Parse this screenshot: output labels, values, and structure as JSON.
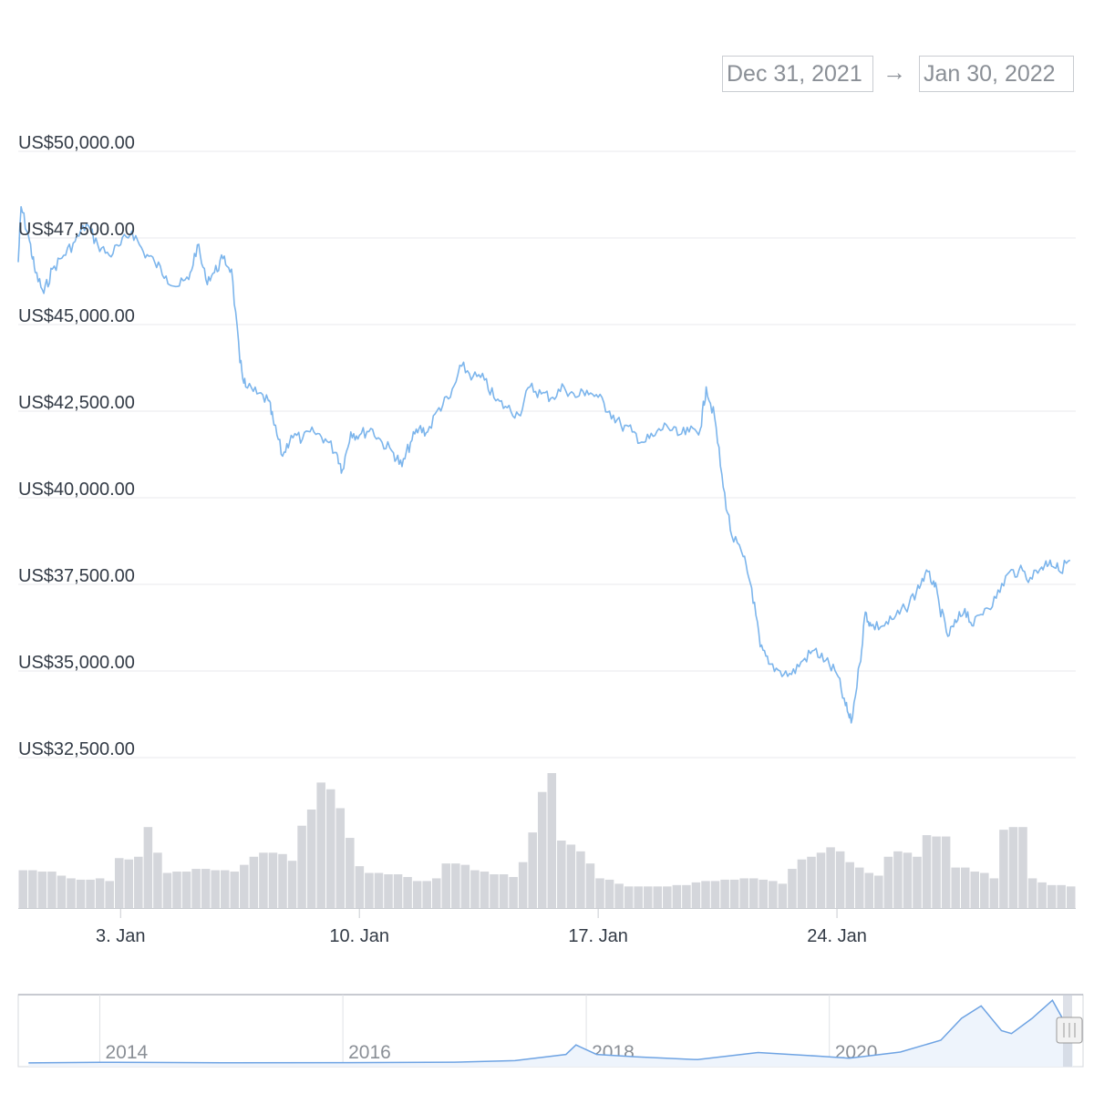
{
  "range_selector": {
    "from": "Dec 31, 2021",
    "arrow": "→",
    "to": "Jan 30, 2022"
  },
  "colors": {
    "price_line": "#7cb5ec",
    "volume_bar": "#d4d6db",
    "grid": "#e8e9ec",
    "navigator_line": "#6ea3e3",
    "navigator_mask": "#c8cdd8"
  },
  "chart_data": {
    "type": "line",
    "title": "",
    "y_axis": {
      "min": 32500,
      "max": 50000,
      "ticks": [
        50000,
        47500,
        45000,
        42500,
        40000,
        37500,
        35000,
        32500
      ],
      "tick_labels": [
        "US$50,000.00",
        "US$47,500.00",
        "US$45,000.00",
        "US$42,500.00",
        "US$40,000.00",
        "US$37,500.00",
        "US$35,000.00",
        "US$32,500.00"
      ]
    },
    "x_axis": {
      "start": "2021-12-31",
      "end": "2022-01-30",
      "ticks": [
        "2022-01-03",
        "2022-01-10",
        "2022-01-17",
        "2022-01-24"
      ],
      "tick_labels": [
        "3. Jan",
        "10. Jan",
        "17. Jan",
        "24. Jan"
      ]
    },
    "grid": true,
    "series": [
      {
        "type": "line",
        "points": [
          [
            "2021-12-31T00:00",
            46800
          ],
          [
            "2021-12-31T02:00",
            48400
          ],
          [
            "2021-12-31T08:00",
            47400
          ],
          [
            "2021-12-31T12:00",
            46500
          ],
          [
            "2021-12-31T18:00",
            45900
          ],
          [
            "2022-01-01T00:00",
            46600
          ],
          [
            "2022-01-01T08:00",
            47000
          ],
          [
            "2022-01-01T16:00",
            47400
          ],
          [
            "2022-01-02T00:00",
            47900
          ],
          [
            "2022-01-02T08:00",
            47300
          ],
          [
            "2022-01-02T16:00",
            47000
          ],
          [
            "2022-01-03T00:00",
            47300
          ],
          [
            "2022-01-03T08:00",
            47700
          ],
          [
            "2022-01-03T16:00",
            47100
          ],
          [
            "2022-01-04T00:00",
            46800
          ],
          [
            "2022-01-04T08:00",
            46400
          ],
          [
            "2022-01-04T16:00",
            46100
          ],
          [
            "2022-01-05T00:00",
            46300
          ],
          [
            "2022-01-05T06:00",
            47300
          ],
          [
            "2022-01-05T12:00",
            46300
          ],
          [
            "2022-01-05T18:00",
            46500
          ],
          [
            "2022-01-06T00:00",
            46900
          ],
          [
            "2022-01-06T06:00",
            46600
          ],
          [
            "2022-01-06T12:00",
            43900
          ],
          [
            "2022-01-06T16:00",
            43200
          ],
          [
            "2022-01-07T00:00",
            43000
          ],
          [
            "2022-01-07T08:00",
            42800
          ],
          [
            "2022-01-07T12:00",
            42100
          ],
          [
            "2022-01-07T18:00",
            41200
          ],
          [
            "2022-01-08T00:00",
            41800
          ],
          [
            "2022-01-08T08:00",
            41700
          ],
          [
            "2022-01-08T16:00",
            41900
          ],
          [
            "2022-01-09T00:00",
            41700
          ],
          [
            "2022-01-09T08:00",
            41300
          ],
          [
            "2022-01-09T12:00",
            40800
          ],
          [
            "2022-01-09T18:00",
            41900
          ],
          [
            "2022-01-10T00:00",
            41800
          ],
          [
            "2022-01-10T08:00",
            42000
          ],
          [
            "2022-01-10T16:00",
            41600
          ],
          [
            "2022-01-11T00:00",
            41300
          ],
          [
            "2022-01-11T06:00",
            40900
          ],
          [
            "2022-01-11T12:00",
            41600
          ],
          [
            "2022-01-11T18:00",
            42000
          ],
          [
            "2022-01-12T00:00",
            41900
          ],
          [
            "2022-01-12T08:00",
            42600
          ],
          [
            "2022-01-12T16:00",
            42900
          ],
          [
            "2022-01-13T00:00",
            43800
          ],
          [
            "2022-01-13T08:00",
            43500
          ],
          [
            "2022-01-13T16:00",
            43400
          ],
          [
            "2022-01-14T00:00",
            42800
          ],
          [
            "2022-01-14T08:00",
            42600
          ],
          [
            "2022-01-14T16:00",
            42400
          ],
          [
            "2022-01-15T00:00",
            43200
          ],
          [
            "2022-01-15T08:00",
            43000
          ],
          [
            "2022-01-15T16:00",
            42900
          ],
          [
            "2022-01-16T00:00",
            43200
          ],
          [
            "2022-01-16T08:00",
            42900
          ],
          [
            "2022-01-16T16:00",
            43100
          ],
          [
            "2022-01-17T00:00",
            42900
          ],
          [
            "2022-01-17T08:00",
            42500
          ],
          [
            "2022-01-17T16:00",
            42100
          ],
          [
            "2022-01-18T00:00",
            41900
          ],
          [
            "2022-01-18T08:00",
            41600
          ],
          [
            "2022-01-18T16:00",
            41800
          ],
          [
            "2022-01-19T00:00",
            42100
          ],
          [
            "2022-01-19T08:00",
            41800
          ],
          [
            "2022-01-19T16:00",
            41900
          ],
          [
            "2022-01-20T00:00",
            42000
          ],
          [
            "2022-01-20T04:00",
            43200
          ],
          [
            "2022-01-20T10:00",
            42300
          ],
          [
            "2022-01-20T16:00",
            40300
          ],
          [
            "2022-01-20T22:00",
            38900
          ],
          [
            "2022-01-21T06:00",
            38300
          ],
          [
            "2022-01-21T12:00",
            37400
          ],
          [
            "2022-01-21T18:00",
            35700
          ],
          [
            "2022-01-22T00:00",
            35200
          ],
          [
            "2022-01-22T08:00",
            35000
          ],
          [
            "2022-01-22T16:00",
            34900
          ],
          [
            "2022-01-23T00:00",
            35300
          ],
          [
            "2022-01-23T08:00",
            35600
          ],
          [
            "2022-01-23T16:00",
            35300
          ],
          [
            "2022-01-24T00:00",
            34900
          ],
          [
            "2022-01-24T06:00",
            34000
          ],
          [
            "2022-01-24T10:00",
            33500
          ],
          [
            "2022-01-24T16:00",
            35200
          ],
          [
            "2022-01-24T20:00",
            36700
          ],
          [
            "2022-01-25T00:00",
            36300
          ],
          [
            "2022-01-25T08:00",
            36300
          ],
          [
            "2022-01-25T16:00",
            36500
          ],
          [
            "2022-01-26T00:00",
            36800
          ],
          [
            "2022-01-26T08:00",
            37300
          ],
          [
            "2022-01-26T14:00",
            37800
          ],
          [
            "2022-01-26T20:00",
            37600
          ],
          [
            "2022-01-27T00:00",
            36900
          ],
          [
            "2022-01-27T06:00",
            36000
          ],
          [
            "2022-01-27T12:00",
            36400
          ],
          [
            "2022-01-27T18:00",
            36800
          ],
          [
            "2022-01-28T00:00",
            36300
          ],
          [
            "2022-01-28T08:00",
            36800
          ],
          [
            "2022-01-28T16:00",
            37100
          ],
          [
            "2022-01-29T00:00",
            37800
          ],
          [
            "2022-01-29T08:00",
            37900
          ],
          [
            "2022-01-29T16:00",
            37700
          ],
          [
            "2022-01-30T00:00",
            38000
          ],
          [
            "2022-01-30T06:00",
            38200
          ],
          [
            "2022-01-30T12:00",
            37900
          ],
          [
            "2022-01-30T20:00",
            38200
          ]
        ]
      },
      {
        "type": "volume",
        "relative_values": [
          0.28,
          0.28,
          0.27,
          0.27,
          0.24,
          0.22,
          0.21,
          0.21,
          0.22,
          0.2,
          0.37,
          0.36,
          0.38,
          0.6,
          0.41,
          0.26,
          0.27,
          0.27,
          0.29,
          0.29,
          0.28,
          0.28,
          0.27,
          0.32,
          0.38,
          0.41,
          0.41,
          0.4,
          0.35,
          0.61,
          0.73,
          0.93,
          0.88,
          0.74,
          0.52,
          0.31,
          0.26,
          0.26,
          0.25,
          0.25,
          0.23,
          0.2,
          0.2,
          0.22,
          0.33,
          0.33,
          0.32,
          0.28,
          0.27,
          0.25,
          0.25,
          0.23,
          0.34,
          0.56,
          0.86,
          1.0,
          0.5,
          0.47,
          0.42,
          0.33,
          0.22,
          0.21,
          0.18,
          0.16,
          0.16,
          0.16,
          0.16,
          0.16,
          0.17,
          0.17,
          0.19,
          0.2,
          0.2,
          0.21,
          0.21,
          0.22,
          0.22,
          0.21,
          0.2,
          0.18,
          0.29,
          0.36,
          0.38,
          0.41,
          0.45,
          0.42,
          0.34,
          0.3,
          0.26,
          0.24,
          0.38,
          0.42,
          0.41,
          0.38,
          0.54,
          0.53,
          0.53,
          0.3,
          0.3,
          0.27,
          0.26,
          0.22,
          0.58,
          0.6,
          0.6,
          0.22,
          0.19,
          0.17,
          0.17,
          0.16
        ]
      }
    ]
  },
  "navigator": {
    "year_labels": [
      "2014",
      "2016",
      "2018",
      "2020"
    ],
    "series": [
      [
        "2013-06",
        50
      ],
      [
        "2014-01",
        800
      ],
      [
        "2014-06",
        600
      ],
      [
        "2015-01",
        250
      ],
      [
        "2016-01",
        400
      ],
      [
        "2016-12",
        900
      ],
      [
        "2017-06",
        2500
      ],
      [
        "2017-11",
        9000
      ],
      [
        "2017-12",
        19000
      ],
      [
        "2018-02",
        9000
      ],
      [
        "2018-06",
        6500
      ],
      [
        "2018-12",
        3500
      ],
      [
        "2019-06",
        11000
      ],
      [
        "2019-12",
        7200
      ],
      [
        "2020-03",
        5000
      ],
      [
        "2020-08",
        11500
      ],
      [
        "2020-12",
        24000
      ],
      [
        "2021-02",
        47000
      ],
      [
        "2021-04",
        60000
      ],
      [
        "2021-06",
        34000
      ],
      [
        "2021-07",
        31000
      ],
      [
        "2021-09",
        47000
      ],
      [
        "2021-11",
        66000
      ],
      [
        "2021-12",
        47000
      ],
      [
        "2022-01",
        38000
      ]
    ]
  }
}
